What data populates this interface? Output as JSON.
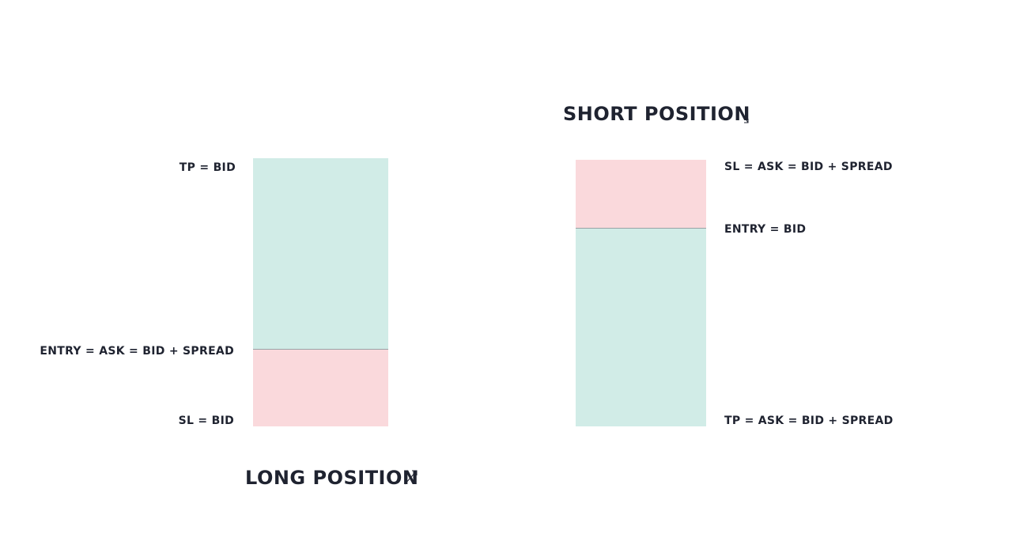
{
  "long_position": {
    "title": "LONG POSITION",
    "arrow_icon": "arrow-up-right-icon",
    "labels": {
      "tp": "TP = BID",
      "entry": "ENTRY = ASK = BID + SPREAD",
      "sl": "SL = BID"
    }
  },
  "short_position": {
    "title": "SHORT POSITION",
    "arrow_icon": "arrow-down-right-icon",
    "labels": {
      "sl": "SL = ASK = BID + SPREAD",
      "entry": "ENTRY = BID",
      "tp": "TP = ASK = BID + SPREAD"
    }
  },
  "colors": {
    "profit_zone": "#d1ece7",
    "loss_zone": "#fad9dc",
    "divider": "#9aa3a6",
    "text": "#1f2330"
  }
}
